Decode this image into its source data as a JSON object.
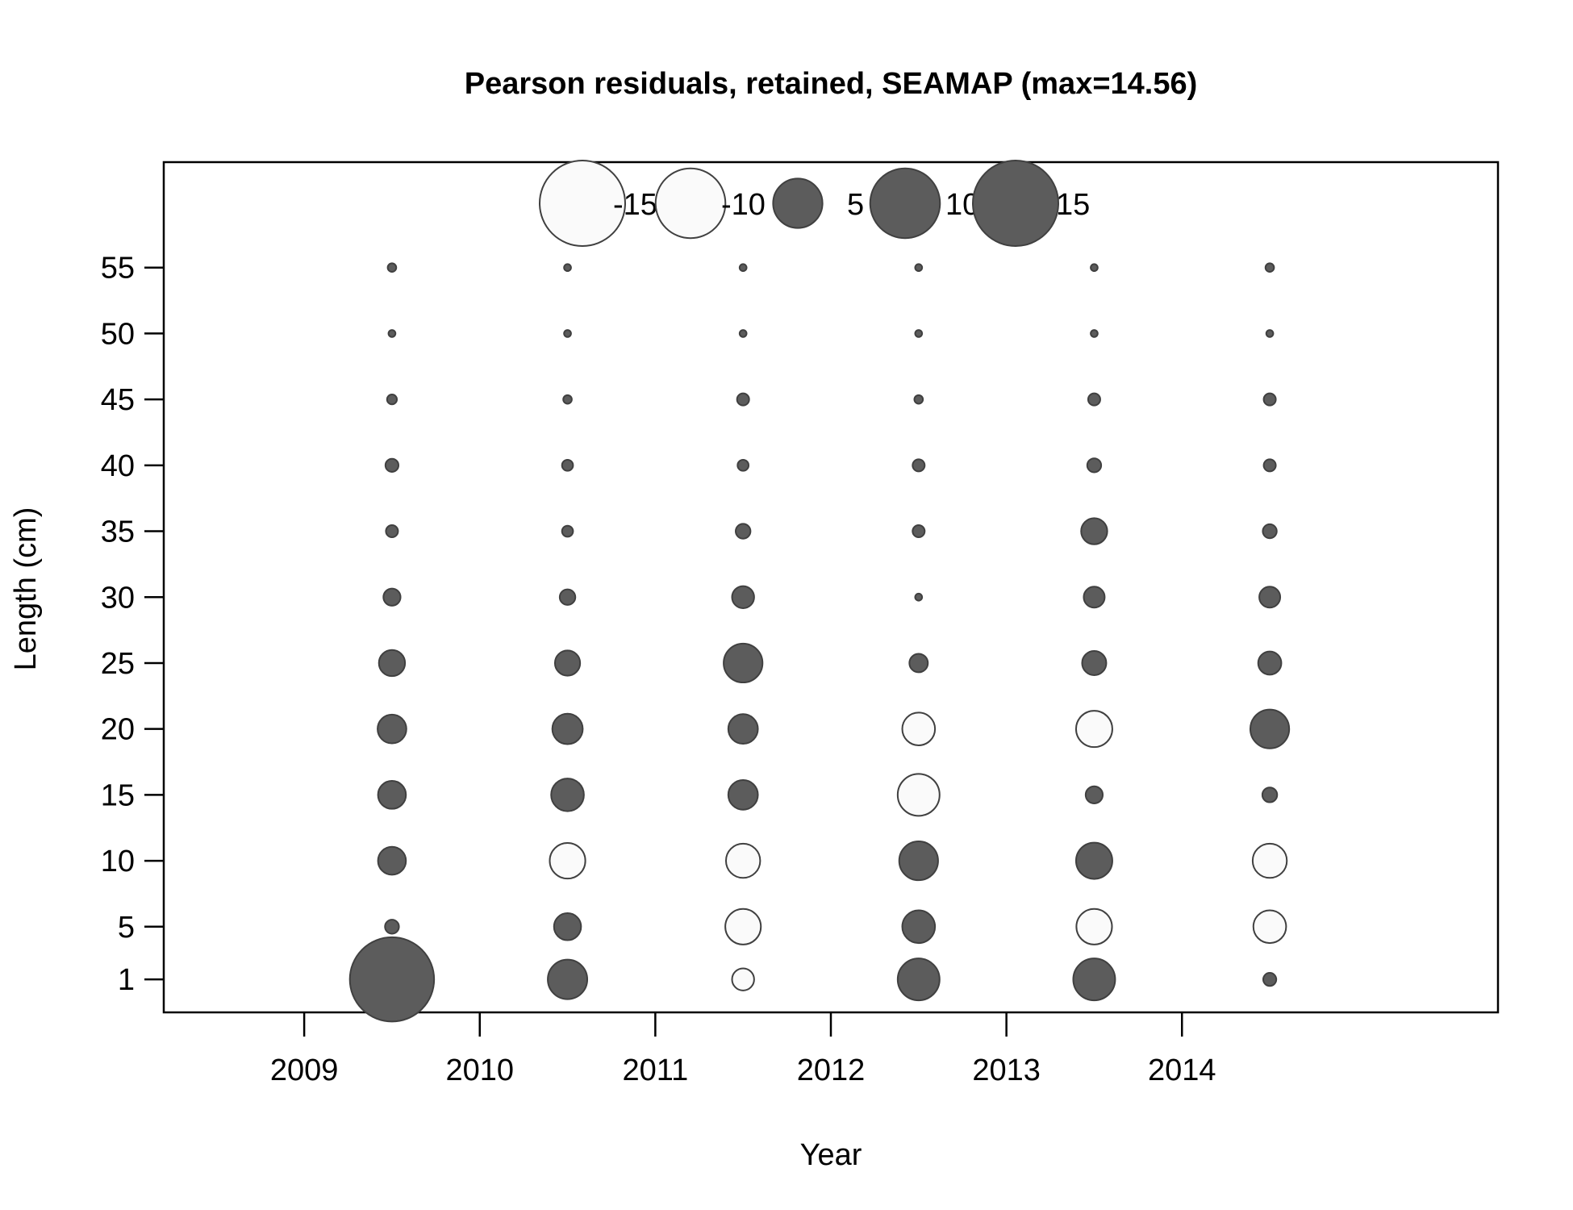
{
  "chart_data": {
    "type": "scatter",
    "subtype": "bubble",
    "title": "Pearson residuals, retained, SEAMAP (max=14.56)",
    "xlabel": "Year",
    "ylabel": "Length (cm)",
    "xlim": [
      2008.2,
      2015.8
    ],
    "ylim": [
      -1.5,
      63
    ],
    "x_ticks": [
      2009,
      2010,
      2011,
      2012,
      2013,
      2014
    ],
    "x_tick_labels": [
      "2009",
      "2010",
      "2011",
      "2012",
      "2013",
      "2014"
    ],
    "y_ticks": [
      1,
      5,
      10,
      15,
      20,
      25,
      30,
      35,
      40,
      45,
      50,
      55
    ],
    "y_tick_labels": [
      "1",
      "5",
      "10",
      "15",
      "20",
      "25",
      "30",
      "35",
      "40",
      "45",
      "50",
      "55"
    ],
    "legend": {
      "placement": "top",
      "entries": [
        {
          "label": "-15",
          "value": -15
        },
        {
          "label": "-10",
          "value": -10
        },
        {
          "label": "5",
          "value": 5
        },
        {
          "label": "10",
          "value": 10
        },
        {
          "label": "15",
          "value": 15
        }
      ]
    },
    "colors": {
      "positive_fill": "#5c5c5c",
      "negative_fill": "#fafafa",
      "stroke": "#404040"
    },
    "lengths": [
      1,
      5,
      10,
      15,
      20,
      25,
      30,
      35,
      40,
      45,
      50,
      55
    ],
    "series": [
      {
        "x": 2009.5,
        "residuals": [
          14.56,
          0.4,
          1.6,
          1.6,
          1.7,
          1.4,
          0.6,
          0.3,
          0.35,
          0.2,
          0.1,
          0.15
        ]
      },
      {
        "x": 2010.5,
        "residuals": [
          3.2,
          1.5,
          -2.6,
          2.2,
          1.9,
          1.3,
          0.5,
          0.25,
          0.25,
          0.15,
          0.1,
          0.1
        ]
      },
      {
        "x": 2011.5,
        "residuals": [
          -1.0,
          -2.6,
          -2.4,
          1.8,
          1.8,
          3.1,
          1.0,
          0.45,
          0.25,
          0.3,
          0.1,
          0.1
        ]
      },
      {
        "x": 2012.5,
        "residuals": [
          3.6,
          2.2,
          3.1,
          -3.6,
          -2.2,
          0.7,
          0.1,
          0.3,
          0.3,
          0.15,
          0.1,
          0.1
        ]
      },
      {
        "x": 2013.5,
        "residuals": [
          3.6,
          -2.6,
          2.7,
          0.6,
          -2.7,
          1.2,
          0.9,
          1.4,
          0.4,
          0.3,
          0.1,
          0.1
        ]
      },
      {
        "x": 2014.5,
        "residuals": [
          0.35,
          -2.2,
          -2.4,
          0.45,
          3.1,
          1.1,
          0.9,
          0.4,
          0.3,
          0.3,
          0.1,
          0.15
        ]
      }
    ]
  }
}
